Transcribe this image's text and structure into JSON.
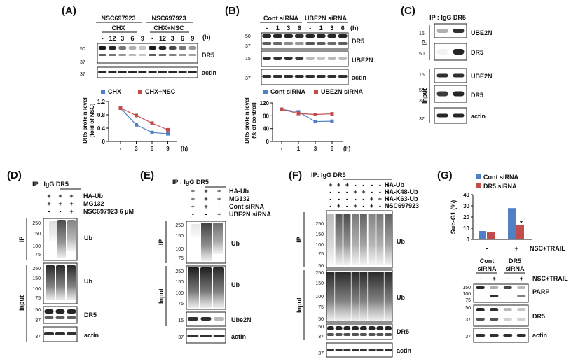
{
  "panels": {
    "A": {
      "label": "(A)",
      "groups": [
        "NSC697923",
        "NSC697923"
      ],
      "subgroups": [
        "CHX",
        "CHX+NSC"
      ],
      "unit": "(h)",
      "lanes": [
        "-",
        "12",
        "3",
        "6",
        "9",
        "-",
        "12",
        "3",
        "6",
        "9"
      ],
      "bands": [
        "DR5",
        "actin"
      ],
      "mw": [
        "50",
        "37",
        "37"
      ],
      "legend": [
        "CHX",
        "CHX+NSC"
      ],
      "ylabel": [
        "DR5 protein level",
        "(fold of NSC)"
      ],
      "yticks": [
        "1.2",
        "0.8",
        "0.4",
        "0"
      ],
      "xticks": [
        "-",
        "3",
        "6",
        "9"
      ],
      "xunit": "(h)"
    },
    "B": {
      "label": "(B)",
      "groups": [
        "Cont siRNA",
        "UBE2N siRNA"
      ],
      "unit": "(h)",
      "lanes": [
        "-",
        "1",
        "3",
        "6",
        "-",
        "1",
        "3",
        "6"
      ],
      "bands": [
        "DR5",
        "UBE2N",
        "actin"
      ],
      "mw": [
        "50",
        "37",
        "15",
        "37"
      ],
      "legend": [
        "Cont siRNA",
        "UBE2N siRNA"
      ],
      "ylabel": [
        "DR5 protein level",
        "(% of control)"
      ],
      "yticks": [
        "120",
        "80",
        "40",
        "0"
      ],
      "xticks": [
        "-",
        "1",
        "3",
        "6"
      ],
      "xunit": "(h)"
    },
    "C": {
      "label": "(C)",
      "header": "IP : IgG  DR5",
      "sections": [
        "IP",
        "Input"
      ],
      "bands": [
        "UBE2N",
        "DR5",
        "UBE2N",
        "DR5",
        "actin"
      ],
      "mw": [
        "15",
        "50",
        "15",
        "50",
        "37",
        "37"
      ]
    },
    "D": {
      "label": "(D)",
      "header": "IP : IgG  DR5",
      "rows": [
        {
          "signs": [
            "+",
            "+",
            "+"
          ],
          "label": "HA-Ub"
        },
        {
          "signs": [
            "+",
            "+",
            "+"
          ],
          "label": "MG132"
        },
        {
          "signs": [
            "-",
            "-",
            "+"
          ],
          "label": "NSC697923 6 μM"
        }
      ],
      "sections": [
        "IP",
        "Input"
      ],
      "bands": [
        "Ub",
        "Ub",
        "DR5",
        "actin"
      ],
      "mw": [
        "250",
        "150",
        "100",
        "75",
        "250",
        "150",
        "100",
        "75",
        "50",
        "37",
        "37"
      ]
    },
    "E": {
      "label": "(E)",
      "header": "IP :  IgG  DR5",
      "rows": [
        {
          "signs": [
            "+",
            "+",
            "+"
          ],
          "label": "HA-Ub"
        },
        {
          "signs": [
            "+",
            "+",
            "+"
          ],
          "label": "MG132"
        },
        {
          "signs": [
            "+",
            "+",
            "-"
          ],
          "label": "Cont siRNA"
        },
        {
          "signs": [
            "-",
            "-",
            "+"
          ],
          "label": "UBE2N siRNA"
        }
      ],
      "sections": [
        "IP",
        "Input"
      ],
      "bands": [
        "Ub",
        "Ub",
        "Ube2N",
        "actin"
      ],
      "mw": [
        "250",
        "150",
        "100",
        "75",
        "250",
        "150",
        "100",
        "75",
        "15",
        "37"
      ]
    },
    "F": {
      "label": "(F)",
      "header": "IP: IgG     DR5",
      "rows": [
        {
          "signs": [
            "+",
            "+",
            "+",
            "-",
            "-",
            "-",
            "-",
            "-"
          ],
          "label": "HA-Ub"
        },
        {
          "signs": [
            "-",
            "-",
            "-",
            "+",
            "+",
            "-",
            "-",
            "-"
          ],
          "label": "HA-K48-Ub"
        },
        {
          "signs": [
            "-",
            "-",
            "-",
            "-",
            "-",
            "+",
            "+",
            "-"
          ],
          "label": "HA-K63-Ub"
        },
        {
          "signs": [
            "-",
            "+",
            "-",
            "+",
            "-",
            "+",
            "-",
            "+"
          ],
          "label": "NSC697923"
        }
      ],
      "sections": [
        "IP",
        "Input"
      ],
      "bands": [
        "Ub",
        "Ub",
        "DR5",
        "actin"
      ],
      "mw": [
        "250",
        "150",
        "100",
        "75",
        "50",
        "250",
        "150",
        "100",
        "75",
        "50",
        "50",
        "37",
        "37"
      ]
    },
    "G": {
      "label": "(G)",
      "legend": [
        "Cont siRNA",
        "DR5 siRNA"
      ],
      "ylabel": "Sub-G1 (%)",
      "yticks": [
        "40",
        "30",
        "20",
        "10",
        "0"
      ],
      "xticks": [
        "-",
        "+"
      ],
      "xlabel": "NSC+TRAIL",
      "star": "*",
      "groups": [
        "Cont",
        "DR5"
      ],
      "groups2": [
        "siRNA",
        "siRNA"
      ],
      "signs": [
        "-",
        "+",
        "-",
        "+"
      ],
      "treat": "NSC+TRAIL",
      "bands": [
        "PARP",
        "DR5",
        "actin"
      ],
      "mw": [
        "150",
        "100",
        "75",
        "50",
        "37",
        "37"
      ]
    }
  },
  "chart_data": [
    {
      "type": "line",
      "x": [
        "-",
        "3",
        "6",
        "9"
      ],
      "series": [
        {
          "name": "CHX",
          "values": [
            1.0,
            0.5,
            0.27,
            0.23
          ]
        },
        {
          "name": "CHX+NSC",
          "values": [
            1.0,
            0.78,
            0.55,
            0.35
          ]
        }
      ],
      "ylabel": "DR5 protein level (fold of NSC)",
      "xlabel": "(h)",
      "ylim": [
        0,
        1.2
      ]
    },
    {
      "type": "line",
      "x": [
        "-",
        "1",
        "3",
        "6"
      ],
      "series": [
        {
          "name": "Cont siRNA",
          "values": [
            100,
            92,
            62,
            63
          ]
        },
        {
          "name": "UBE2N siRNA",
          "values": [
            100,
            87,
            84,
            86
          ]
        }
      ],
      "ylabel": "DR5 protein level (% of control)",
      "xlabel": "(h)",
      "ylim": [
        0,
        120
      ]
    },
    {
      "type": "bar",
      "categories": [
        "-",
        "+"
      ],
      "series": [
        {
          "name": "Cont siRNA",
          "values": [
            7.5,
            28
          ]
        },
        {
          "name": "DR5 siRNA",
          "values": [
            6.5,
            13
          ]
        }
      ],
      "ylabel": "Sub-G1 (%)",
      "xlabel": "NSC+TRAIL",
      "ylim": [
        0,
        40
      ]
    }
  ],
  "colors": {
    "blue": "#4f7fc4",
    "red": "#c24b4b",
    "blot": "#1a1a1a"
  }
}
